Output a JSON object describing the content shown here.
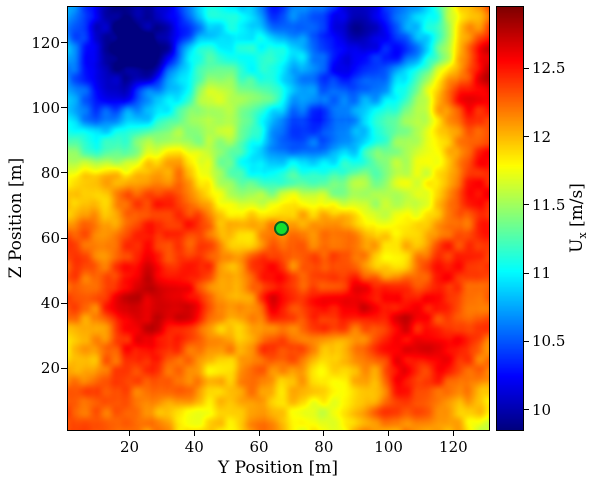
{
  "chart_data": {
    "type": "heatmap",
    "title": "",
    "xlabel": "Y Position [m]",
    "ylabel": "Z Position [m]",
    "colormap": "jet",
    "clim": [
      9.85,
      12.95
    ],
    "x_range": [
      1,
      131
    ],
    "z_range": [
      1,
      131
    ],
    "x_ticks": [
      20,
      40,
      60,
      80,
      100,
      120
    ],
    "z_ticks": [
      20,
      40,
      60,
      80,
      100,
      120
    ],
    "colorbar": {
      "label_main": "U",
      "label_sub": "x",
      "label_unit": " [m/s]",
      "label_text": "U_x [m/s]",
      "ticks": [
        10,
        10.5,
        11,
        11.5,
        12,
        12.5
      ]
    },
    "marker": {
      "y": 67,
      "z": 63,
      "color": "#14e02e",
      "edge": "#0b5e20"
    },
    "grid_note": "Coarse 16x16 estimate of the instantaneous streamwise wind speed U_x [m/s]. Rows ordered from top (z = 131 m) down to bottom (z = 1 m); columns from left (y = 1 m) to right (y = 131 m). Fine-scale turbulence texture is added procedurally at render time.",
    "values": [
      [
        10.8,
        10.2,
        9.9,
        9.9,
        10.4,
        10.9,
        11.0,
        10.7,
        10.5,
        10.2,
        10.0,
        10.1,
        10.6,
        11.2,
        12.0,
        12.5
      ],
      [
        10.7,
        10.1,
        9.85,
        9.9,
        10.3,
        10.8,
        11.0,
        10.8,
        10.5,
        10.0,
        9.9,
        10.0,
        10.5,
        11.1,
        11.9,
        12.4
      ],
      [
        10.8,
        10.3,
        10.0,
        10.2,
        10.6,
        11.0,
        11.1,
        10.9,
        10.5,
        10.1,
        9.95,
        10.2,
        10.7,
        11.2,
        11.9,
        12.3
      ],
      [
        11.0,
        10.7,
        10.5,
        10.8,
        11.1,
        11.5,
        11.3,
        11.0,
        10.6,
        10.2,
        10.2,
        10.5,
        11.0,
        11.5,
        12.0,
        12.3
      ],
      [
        11.1,
        10.9,
        11.0,
        11.2,
        11.6,
        11.8,
        11.5,
        11.0,
        10.4,
        10.1,
        10.3,
        10.9,
        11.3,
        11.6,
        11.9,
        12.1
      ],
      [
        11.5,
        11.2,
        11.4,
        11.7,
        12.0,
        11.8,
        11.4,
        11.0,
        10.8,
        10.7,
        10.9,
        11.4,
        11.6,
        11.8,
        12.0,
        12.1
      ],
      [
        11.8,
        11.9,
        12.0,
        12.2,
        12.3,
        12.0,
        11.6,
        11.4,
        11.5,
        11.7,
        11.8,
        11.7,
        11.8,
        12.0,
        12.1,
        12.2
      ],
      [
        12.0,
        12.1,
        12.3,
        12.5,
        12.5,
        12.3,
        12.2,
        11.9,
        11.9,
        12.0,
        12.0,
        11.8,
        12.0,
        12.1,
        12.3,
        12.3
      ],
      [
        12.3,
        12.4,
        12.5,
        12.7,
        12.5,
        12.4,
        12.3,
        12.1,
        12.0,
        12.2,
        12.3,
        12.1,
        12.2,
        12.3,
        12.4,
        12.4
      ],
      [
        12.4,
        12.5,
        12.7,
        12.6,
        12.5,
        12.5,
        12.4,
        12.3,
        12.1,
        12.3,
        12.4,
        12.3,
        12.4,
        12.5,
        12.4,
        12.3
      ],
      [
        12.4,
        12.5,
        12.8,
        12.9,
        12.8,
        12.5,
        12.3,
        12.4,
        12.3,
        12.3,
        12.4,
        12.5,
        12.5,
        12.6,
        12.5,
        12.4
      ],
      [
        12.3,
        12.4,
        12.9,
        13.0,
        12.8,
        12.5,
        12.4,
        12.4,
        12.4,
        12.3,
        12.4,
        12.5,
        12.6,
        12.5,
        12.4,
        12.3
      ],
      [
        12.2,
        12.4,
        12.8,
        12.9,
        12.6,
        12.4,
        12.3,
        12.5,
        12.4,
        12.2,
        12.3,
        12.4,
        12.5,
        12.4,
        12.3,
        12.2
      ],
      [
        12.1,
        12.3,
        12.5,
        12.6,
        12.4,
        12.2,
        12.3,
        12.4,
        12.2,
        12.1,
        12.2,
        12.3,
        12.4,
        12.3,
        12.2,
        12.1
      ],
      [
        12.0,
        12.2,
        12.3,
        12.4,
        12.2,
        12.1,
        12.2,
        12.3,
        12.1,
        12.0,
        12.1,
        12.2,
        12.3,
        12.2,
        12.1,
        12.0
      ],
      [
        12.0,
        12.1,
        12.2,
        12.3,
        12.1,
        12.0,
        12.1,
        12.2,
        12.0,
        11.9,
        12.0,
        12.1,
        12.2,
        12.1,
        12.0,
        11.9
      ]
    ]
  },
  "render": {
    "noise_seed": 11,
    "noise_octaves": [
      [
        26,
        0.3
      ],
      [
        13,
        0.22
      ],
      [
        6.5,
        0.15
      ],
      [
        3.2,
        0.1
      ]
    ]
  }
}
